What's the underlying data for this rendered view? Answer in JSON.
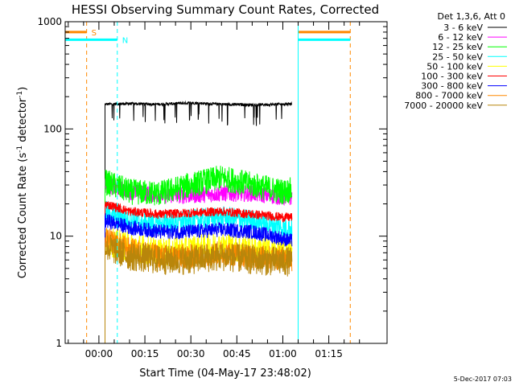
{
  "chart_data": {
    "type": "line",
    "title": "HESSI Observing Summary Count Rates, Corrected",
    "xlabel": "Start Time (04-May-17 23:48:02)",
    "ylabel": "Corrected Count Rate (s-1 detector-1)",
    "ylabel_parts": {
      "a": "Corrected Count Rate (s",
      "e1": "-1",
      "b": " detector",
      "e2": "-1",
      "c": ")"
    },
    "x_unit": "minutes since start",
    "xlim": [
      -11,
      94
    ],
    "ylim": [
      1,
      1000
    ],
    "y_scale": "log",
    "y_ticks": [
      1,
      10,
      100,
      1000
    ],
    "y_tick_labels": [
      "1",
      "10",
      "100",
      "1000"
    ],
    "x_ticks": [
      0,
      15,
      30,
      45,
      60,
      75
    ],
    "x_tick_labels": [
      "00:00",
      "00:15",
      "00:30",
      "00:45",
      "01:00",
      "01:15"
    ],
    "legend_title": "Det 1,3,6, Att 0",
    "legend_position": "right, outside plot",
    "series": [
      {
        "name": "3 - 6 keV",
        "color": "#000000",
        "x": [
          2,
          10,
          20,
          30,
          40,
          50,
          60,
          63
        ],
        "values": [
          170,
          172,
          170,
          175,
          170,
          168,
          170,
          172
        ]
      },
      {
        "name": "6 - 12 keV",
        "color": "#ff00ff",
        "x": [
          2,
          10,
          20,
          30,
          40,
          50,
          60,
          63
        ],
        "values": [
          30,
          26,
          24,
          24,
          25,
          25,
          23,
          23
        ]
      },
      {
        "name": "12 - 25 keV",
        "color": "#00ff00",
        "x": [
          2,
          10,
          20,
          30,
          40,
          50,
          60,
          63
        ],
        "values": [
          32,
          26,
          25,
          30,
          35,
          30,
          26,
          27
        ]
      },
      {
        "name": "25 - 50 keV",
        "color": "#00ffff",
        "x": [
          2,
          10,
          20,
          30,
          40,
          50,
          60,
          63
        ],
        "values": [
          17,
          14,
          13,
          14,
          15,
          14,
          12,
          12
        ]
      },
      {
        "name": "50 - 100 keV",
        "color": "#ffff00",
        "x": [
          2,
          10,
          20,
          30,
          40,
          50,
          60,
          63
        ],
        "values": [
          9,
          8,
          7,
          7.5,
          8,
          7.5,
          7,
          7
        ]
      },
      {
        "name": "100 - 300 keV",
        "color": "#ff0000",
        "x": [
          2,
          10,
          20,
          30,
          40,
          50,
          60,
          63
        ],
        "values": [
          20,
          17,
          16,
          16.5,
          17,
          16,
          15,
          15
        ]
      },
      {
        "name": "300 - 800 keV",
        "color": "#0000ff",
        "x": [
          2,
          10,
          20,
          30,
          40,
          50,
          60,
          63
        ],
        "values": [
          14,
          12,
          11,
          11,
          11.5,
          11,
          9.5,
          9
        ]
      },
      {
        "name": "800 - 7000 keV",
        "color": "#ff8800",
        "x": [
          2,
          10,
          20,
          30,
          40,
          50,
          60,
          63
        ],
        "values": [
          9.5,
          7.5,
          6.5,
          6.5,
          7,
          6.5,
          6.2,
          6
        ]
      },
      {
        "name": "7000 - 20000 keV",
        "color": "#b8860b",
        "x": [
          2,
          10,
          20,
          30,
          40,
          50,
          60,
          63
        ],
        "values": [
          8,
          6.5,
          6,
          6,
          6.5,
          6,
          5.8,
          5.8
        ]
      }
    ],
    "flags": [
      {
        "label": "S",
        "color": "#ff8800",
        "bars": [
          [
            -11,
            -4
          ],
          [
            65,
            82
          ]
        ],
        "bar_y": 800,
        "vlines": [
          -4,
          82
        ]
      },
      {
        "label": "N",
        "color": "#00ffff",
        "bars": [
          [
            -11,
            6
          ],
          [
            65,
            82
          ]
        ],
        "bar_y": 680,
        "vlines": [
          -11,
          6,
          65
        ]
      }
    ],
    "grid": false
  },
  "footer": {
    "date": "5-Dec-2017 07:03"
  }
}
